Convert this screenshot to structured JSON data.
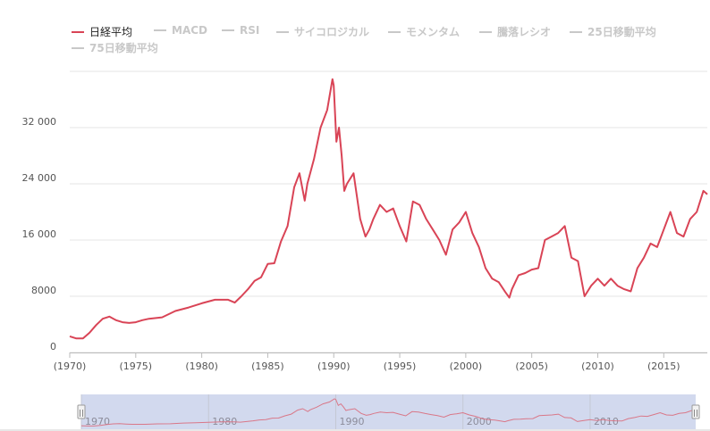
{
  "chart_data": {
    "type": "line",
    "title": "",
    "xlabel": "",
    "ylabel": "",
    "xlim": [
      1970,
      2018.3
    ],
    "ylim": [
      0,
      40000
    ],
    "grid": true,
    "legend_position": "top-left",
    "series_color": "#d94456",
    "series": [
      {
        "name": "日経平均",
        "x": [
          1970.0,
          1970.5,
          1971.0,
          1971.5,
          1972.0,
          1972.5,
          1973.0,
          1973.5,
          1974.0,
          1974.5,
          1975.0,
          1975.5,
          1976.0,
          1977.0,
          1978.0,
          1979.0,
          1980.0,
          1981.0,
          1982.0,
          1982.5,
          1983.0,
          1983.5,
          1984.0,
          1984.5,
          1985.0,
          1985.5,
          1986.0,
          1986.5,
          1987.0,
          1987.4,
          1987.8,
          1988.0,
          1988.5,
          1989.0,
          1989.5,
          1989.9,
          1990.0,
          1990.2,
          1990.4,
          1990.6,
          1990.8,
          1991.0,
          1991.5,
          1992.0,
          1992.4,
          1992.7,
          1993.0,
          1993.5,
          1994.0,
          1994.5,
          1995.0,
          1995.5,
          1996.0,
          1996.5,
          1997.0,
          1997.5,
          1998.0,
          1998.5,
          1999.0,
          1999.5,
          2000.0,
          2000.5,
          2001.0,
          2001.5,
          2002.0,
          2002.5,
          2003.0,
          2003.3,
          2003.5,
          2004.0,
          2004.5,
          2005.0,
          2005.5,
          2006.0,
          2006.5,
          2007.0,
          2007.5,
          2008.0,
          2008.5,
          2009.0,
          2009.5,
          2010.0,
          2010.5,
          2011.0,
          2011.5,
          2012.0,
          2012.5,
          2013.0,
          2013.5,
          2014.0,
          2014.5,
          2015.0,
          2015.5,
          2016.0,
          2016.5,
          2017.0,
          2017.5,
          2018.0,
          2018.3
        ],
        "values": [
          2300,
          2000,
          2000,
          2800,
          3900,
          4800,
          5100,
          4600,
          4300,
          4200,
          4300,
          4600,
          4800,
          5000,
          5900,
          6400,
          7000,
          7500,
          7500,
          7100,
          8000,
          9000,
          10200,
          10700,
          12600,
          12700,
          15800,
          18000,
          23500,
          25500,
          21600,
          24000,
          27500,
          32000,
          34500,
          38900,
          38000,
          30000,
          32000,
          28000,
          23000,
          24000,
          25500,
          19000,
          16500,
          17500,
          19000,
          21000,
          20000,
          20500,
          18000,
          15800,
          21500,
          21000,
          19000,
          17500,
          16000,
          13900,
          17500,
          18500,
          20000,
          17000,
          15000,
          12000,
          10500,
          10000,
          8600,
          7800,
          9000,
          11000,
          11300,
          11800,
          12000,
          16000,
          16500,
          17000,
          18000,
          13500,
          13000,
          8000,
          9500,
          10500,
          9500,
          10500,
          9500,
          9000,
          8700,
          12000,
          13500,
          15500,
          15000,
          17500,
          20000,
          17000,
          16500,
          19000,
          20000,
          23000,
          22500
        ]
      },
      {
        "name": "MACD"
      },
      {
        "name": "RSI"
      },
      {
        "name": "サイコロジカル"
      },
      {
        "name": "モメンタム"
      },
      {
        "name": "騰落レシオ"
      },
      {
        "name": "25日移動平均"
      },
      {
        "name": "75日移動平均"
      }
    ],
    "y_ticks": [
      {
        "value": 0,
        "label": "0"
      },
      {
        "value": 8000,
        "label": "8000"
      },
      {
        "value": 16000,
        "label": "16 000"
      },
      {
        "value": 24000,
        "label": "24 000"
      },
      {
        "value": 32000,
        "label": "32 000"
      }
    ],
    "x_ticks": [
      {
        "value": 1970,
        "label": "(1970)"
      },
      {
        "value": 1975,
        "label": "(1975)"
      },
      {
        "value": 1980,
        "label": "(1980)"
      },
      {
        "value": 1985,
        "label": "(1985)"
      },
      {
        "value": 1990,
        "label": "(1990)"
      },
      {
        "value": 1995,
        "label": "(1995)"
      },
      {
        "value": 2000,
        "label": "(2000)"
      },
      {
        "value": 2005,
        "label": "(2005)"
      },
      {
        "value": 2010,
        "label": "(2010)"
      },
      {
        "value": 2015,
        "label": "(2015)"
      }
    ],
    "navigator": {
      "x_ticks": [
        {
          "value": 1970,
          "label": "1970"
        },
        {
          "value": 1980,
          "label": "1980"
        },
        {
          "value": 1990,
          "label": "1990"
        },
        {
          "value": 2000,
          "label": "2000"
        },
        {
          "value": 2010,
          "label": "2010"
        }
      ],
      "handle_glyph": "||",
      "mask_color": "#d2d9ee",
      "range": [
        1970,
        2018.3
      ]
    }
  }
}
